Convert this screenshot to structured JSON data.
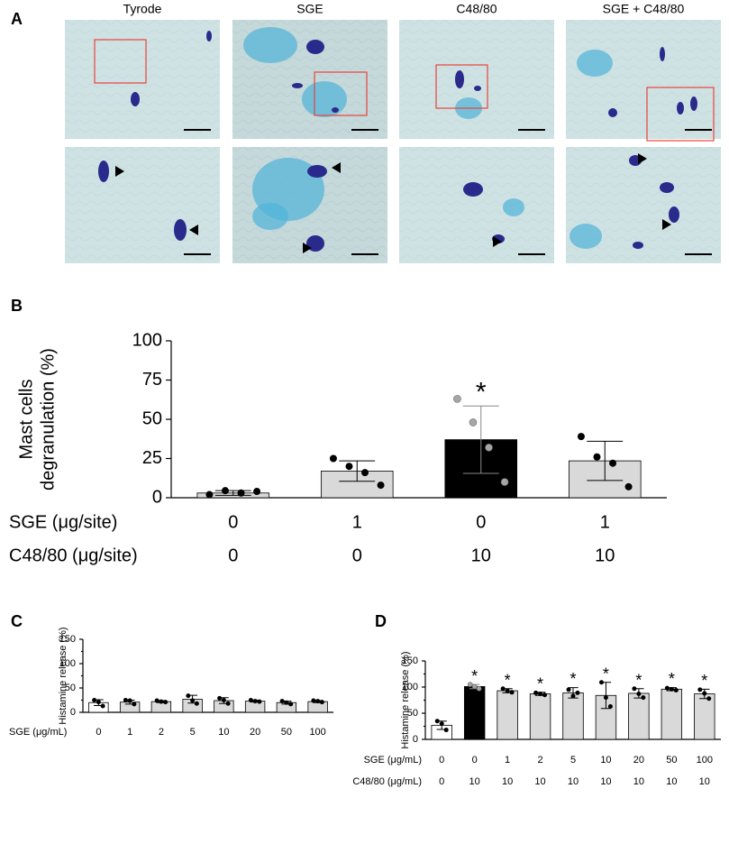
{
  "panel_a": {
    "label": "A",
    "columns": [
      "Tyrode",
      "SGE",
      "C48/80",
      "SGE + C48/80"
    ]
  },
  "chart_data": [
    {
      "type": "bar",
      "panel": "B",
      "ylabel": [
        "Mast cells",
        "degranulation (%)"
      ],
      "ylim": [
        0,
        100
      ],
      "yticks": [
        0,
        25,
        50,
        75,
        100
      ],
      "values": [
        3,
        17,
        37,
        23.5
      ],
      "errors": [
        1.5,
        6.5,
        21.5,
        12.5
      ],
      "colors": [
        "#d9d9d9",
        "#d9d9d9",
        "#000000",
        "#d9d9d9"
      ],
      "point_colors": [
        "#000000",
        "#000000",
        "#a6a6a6",
        "#000000"
      ],
      "points": [
        [
          2,
          4.5,
          3,
          4
        ],
        [
          25,
          20,
          16,
          8
        ],
        [
          63,
          48,
          32,
          10
        ],
        [
          39,
          26,
          22,
          7
        ]
      ],
      "significance": [
        null,
        null,
        "*",
        null
      ],
      "conditions": [
        {
          "label": "SGE (μg/site)",
          "values": [
            0,
            1,
            0,
            1
          ]
        },
        {
          "label": "C48/80 (μg/site)",
          "values": [
            0,
            0,
            10,
            10
          ]
        }
      ]
    },
    {
      "type": "bar",
      "panel": "C",
      "ylabel": [
        "Histamine release (%)"
      ],
      "ylim": [
        0,
        150
      ],
      "yticks": [
        0,
        50,
        100,
        150
      ],
      "yminor": [
        25,
        75,
        125
      ],
      "values": [
        20,
        21,
        22,
        27,
        24,
        23,
        20,
        22
      ],
      "errors": [
        6,
        4,
        2,
        8,
        6,
        2,
        3,
        2
      ],
      "colors": [
        "#ffffff",
        "#d9d9d9",
        "#d9d9d9",
        "#d9d9d9",
        "#d9d9d9",
        "#d9d9d9",
        "#d9d9d9",
        "#d9d9d9"
      ],
      "point_colors": [
        "#000000",
        "#000000",
        "#000000",
        "#000000",
        "#000000",
        "#000000",
        "#000000",
        "#000000"
      ],
      "points": [
        [
          25,
          21,
          13
        ],
        [
          25,
          24,
          17
        ],
        [
          24,
          22,
          21
        ],
        [
          34,
          24,
          18
        ],
        [
          29,
          25,
          18
        ],
        [
          25,
          23,
          22
        ],
        [
          23,
          20,
          17
        ],
        [
          24,
          23,
          21
        ]
      ],
      "significance": [
        null,
        null,
        null,
        null,
        null,
        null,
        null,
        null
      ],
      "conditions": [
        {
          "label": "SGE (μg/mL)",
          "values": [
            0,
            1,
            2,
            5,
            10,
            20,
            50,
            100
          ]
        }
      ]
    },
    {
      "type": "bar",
      "panel": "D",
      "ylabel": [
        "Histamine release (%)"
      ],
      "ylim": [
        0,
        150
      ],
      "yticks": [
        0,
        50,
        100,
        150
      ],
      "yminor": [
        25,
        75,
        125
      ],
      "values": [
        27,
        101,
        93,
        87,
        89,
        84,
        88,
        96,
        87
      ],
      "errors": [
        8,
        4,
        4,
        3,
        10,
        25,
        9,
        3,
        9
      ],
      "colors": [
        "#ffffff",
        "#000000",
        "#d9d9d9",
        "#d9d9d9",
        "#d9d9d9",
        "#d9d9d9",
        "#d9d9d9",
        "#d9d9d9",
        "#d9d9d9"
      ],
      "point_colors": [
        "#000000",
        "#a6a6a6",
        "#000000",
        "#000000",
        "#000000",
        "#000000",
        "#000000",
        "#000000",
        "#000000"
      ],
      "points": [
        [
          35,
          30,
          18
        ],
        [
          105,
          101,
          97
        ],
        [
          97,
          93,
          90
        ],
        [
          89,
          87,
          85
        ],
        [
          95,
          83,
          89
        ],
        [
          109,
          80,
          63
        ],
        [
          97,
          87,
          80
        ],
        [
          98,
          96,
          94
        ],
        [
          95,
          88,
          78
        ]
      ],
      "significance": [
        null,
        "*",
        "*",
        "*",
        "*",
        "*",
        "*",
        "*",
        "*"
      ],
      "conditions": [
        {
          "label": "SGE (μg/mL)",
          "values": [
            0,
            0,
            1,
            2,
            5,
            10,
            20,
            50,
            100
          ]
        },
        {
          "label": "C48/80 (μg/mL)",
          "values": [
            0,
            10,
            10,
            10,
            10,
            10,
            10,
            10,
            10
          ]
        }
      ]
    }
  ]
}
